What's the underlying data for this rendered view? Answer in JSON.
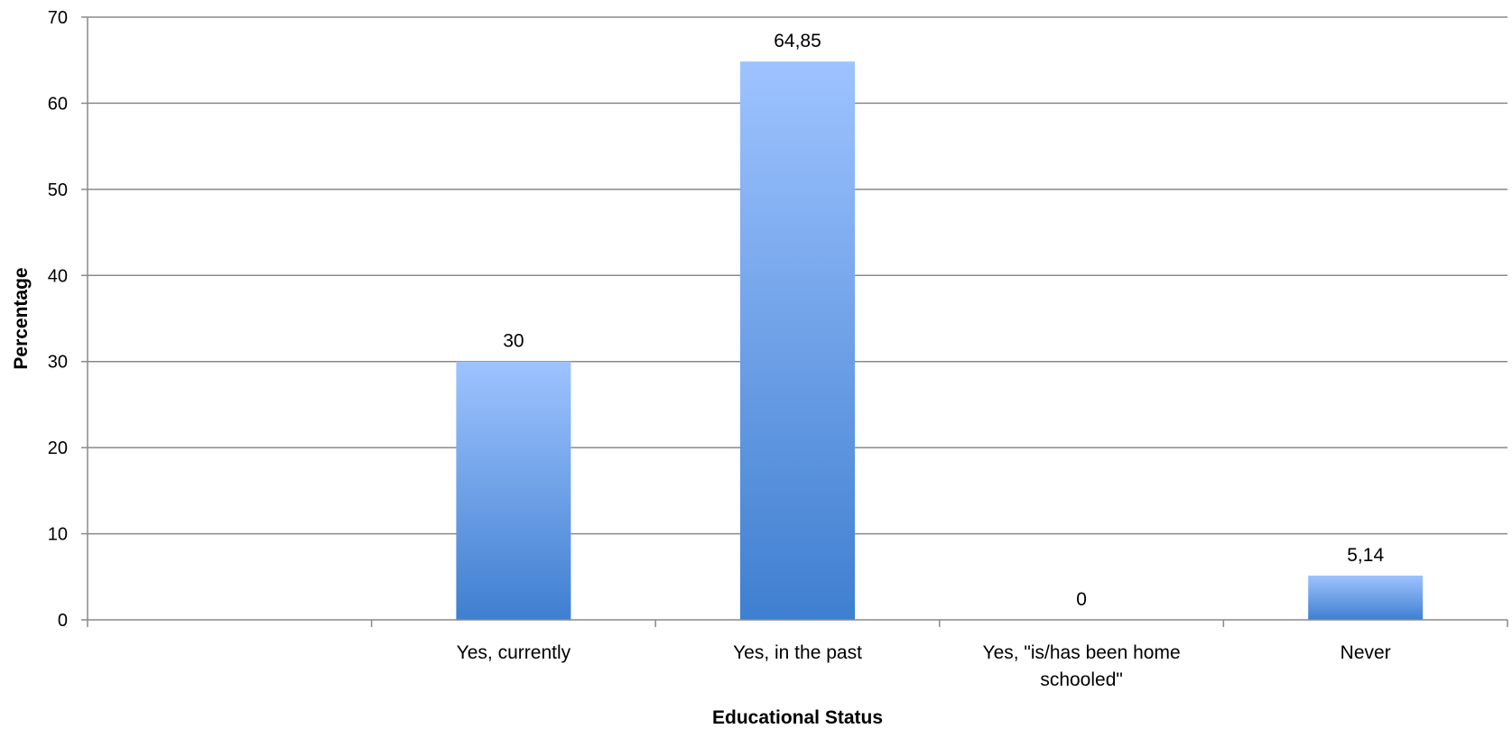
{
  "chart_data": {
    "type": "bar",
    "title": "",
    "xlabel": "Educational Status",
    "ylabel": "Percentage",
    "categories": [
      "",
      [
        "Yes, currently"
      ],
      [
        "Yes, in the past"
      ],
      [
        "Yes, \"is/has been home",
        "schooled\""
      ],
      [
        "Never"
      ]
    ],
    "values": [
      null,
      30,
      64.85,
      0,
      5.14
    ],
    "data_labels": [
      "",
      "30",
      "64,85",
      "0",
      "5,14"
    ],
    "ylim": [
      0,
      70
    ],
    "yticks": [
      0,
      10,
      20,
      30,
      40,
      50,
      60,
      70
    ],
    "grid": true,
    "legend": "none",
    "colors": {
      "bar_top": "#9ec3ff",
      "bar_bottom": "#3f7fd0",
      "grid": "#898989",
      "axis": "#898989"
    }
  }
}
